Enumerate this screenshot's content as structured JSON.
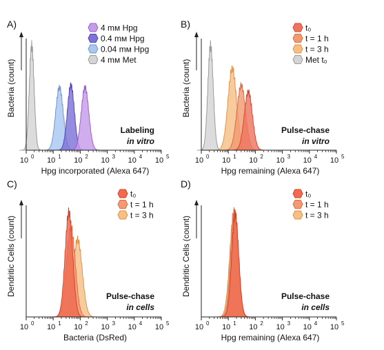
{
  "figure": {
    "panels": [
      {
        "letter": "A)",
        "ylabel": "Bacteria (count)",
        "xlabel": "Hpg incorporated (Alexa 647)",
        "annotation": [
          "Labeling",
          "in vitro"
        ],
        "legend": [
          "4 mм Hpg",
          "0.4 mм Hpg",
          "0.04 mм Hpg",
          "4 mм Met"
        ],
        "xticks": [
          "10",
          "10",
          "10",
          "10",
          "10",
          "10"
        ],
        "xtick_exponents": [
          "0",
          "1",
          "2",
          "3",
          "4",
          "5"
        ]
      },
      {
        "letter": "B)",
        "ylabel": "Bacteria (count)",
        "xlabel": "Hpg remaining (Alexa 647)",
        "annotation": [
          "Pulse-chase",
          "in vitro"
        ],
        "legend": [
          "t₀",
          "t = 1 h",
          "t = 3 h",
          "Met t₀"
        ],
        "xticks": [
          "10",
          "10",
          "10",
          "10",
          "10",
          "10"
        ],
        "xtick_exponents": [
          "0",
          "1",
          "2",
          "3",
          "4",
          "5"
        ]
      },
      {
        "letter": "C)",
        "ylabel": "Dendritic Cells (count)",
        "xlabel": "Bacteria (DsRed)",
        "annotation": [
          "Pulse-chase",
          "in cells"
        ],
        "legend": [
          "t₀",
          "t = 1 h",
          "t = 3 h"
        ],
        "xticks": [
          "10",
          "10",
          "10",
          "10",
          "10",
          "10"
        ],
        "xtick_exponents": [
          "0",
          "1",
          "2",
          "3",
          "4",
          "5"
        ]
      },
      {
        "letter": "D)",
        "ylabel": "Dendritic Cells (count)",
        "xlabel": "Hpg remaining (Alexa 647)",
        "annotation": [
          "Pulse-chase",
          "in cells"
        ],
        "legend": [
          "t₀",
          "t = 1 h",
          "t = 3 h"
        ],
        "xticks": [
          "10",
          "10",
          "10",
          "10",
          "10",
          "10"
        ],
        "xtick_exponents": [
          "0",
          "1",
          "2",
          "3",
          "4",
          "5"
        ]
      }
    ]
  },
  "chart_data": [
    {
      "type": "area",
      "panel": "A)",
      "x_scale": "log10",
      "xlim": [
        1,
        100000
      ],
      "xlabel": "Hpg incorporated (Alexa 647)",
      "ylabel": "Bacteria (count)",
      "series": [
        {
          "name": "4 mм Met",
          "color": "#d4d4d4",
          "stroke": "#9a9a9a",
          "peak_x": 1.6,
          "width": 0.09,
          "rel_height": 1.0
        },
        {
          "name": "0.04 mм Hpg",
          "color": "#a9c7ef",
          "stroke": "#6f95cf",
          "peak_x": 17,
          "width": 0.14,
          "rel_height": 0.6
        },
        {
          "name": "0.4 mм Hpg",
          "color": "#7e72d8",
          "stroke": "#5347b5",
          "peak_x": 45,
          "width": 0.13,
          "rel_height": 0.62
        },
        {
          "name": "4 mм Hpg",
          "color": "#c69be8",
          "stroke": "#9a5fcf",
          "peak_x": 150,
          "width": 0.14,
          "rel_height": 0.6
        }
      ]
    },
    {
      "type": "area",
      "panel": "B)",
      "x_scale": "log10",
      "xlim": [
        1,
        100000
      ],
      "xlabel": "Hpg remaining (Alexa 647)",
      "ylabel": "Bacteria (count)",
      "series": [
        {
          "name": "Met t₀",
          "color": "#d4d4d4",
          "stroke": "#9a9a9a",
          "peak_x": 2.2,
          "width": 0.1,
          "rel_height": 1.0
        },
        {
          "name": "t = 3 h",
          "color": "#f6bf86",
          "stroke": "#e0924a",
          "peak_x": 14,
          "width": 0.16,
          "rel_height": 0.78
        },
        {
          "name": "t = 1 h",
          "color": "#f29a72",
          "stroke": "#de6a43",
          "peak_x": 30,
          "width": 0.16,
          "rel_height": 0.62
        },
        {
          "name": "t₀",
          "color": "#ef7560",
          "stroke": "#d8452f",
          "peak_x": 55,
          "width": 0.15,
          "rel_height": 0.56
        }
      ]
    },
    {
      "type": "area",
      "panel": "C)",
      "x_scale": "log10",
      "xlim": [
        1,
        100000
      ],
      "xlabel": "Bacteria (DsRed)",
      "ylabel": "Dendritic Cells (count)",
      "series": [
        {
          "name": "t = 3 h",
          "color": "#f6bf86",
          "stroke": "#e0924a",
          "peak_x": 80,
          "width": 0.17,
          "rel_height": 0.74
        },
        {
          "name": "t = 1 h",
          "color": "#f29a72",
          "stroke": "#de6a43",
          "peak_x": 45,
          "width": 0.16,
          "rel_height": 0.86
        },
        {
          "name": "t₀",
          "color": "#ef6a4f",
          "stroke": "#d44228",
          "peak_x": 38,
          "width": 0.14,
          "rel_height": 1.0
        }
      ]
    },
    {
      "type": "area",
      "panel": "D)",
      "x_scale": "log10",
      "xlim": [
        1,
        100000
      ],
      "xlabel": "Hpg remaining (Alexa 647)",
      "ylabel": "Dendritic Cells (count)",
      "series": [
        {
          "name": "t = 3 h",
          "color": "#f6bf86",
          "stroke": "#e0924a",
          "peak_x": 16,
          "width": 0.15,
          "rel_height": 1.0
        },
        {
          "name": "t = 1 h",
          "color": "#f29a72",
          "stroke": "#de6a43",
          "peak_x": 17,
          "width": 0.14,
          "rel_height": 1.0
        },
        {
          "name": "t₀",
          "color": "#ef6a4f",
          "stroke": "#d44228",
          "peak_x": 18,
          "width": 0.13,
          "rel_height": 0.98
        }
      ]
    }
  ]
}
